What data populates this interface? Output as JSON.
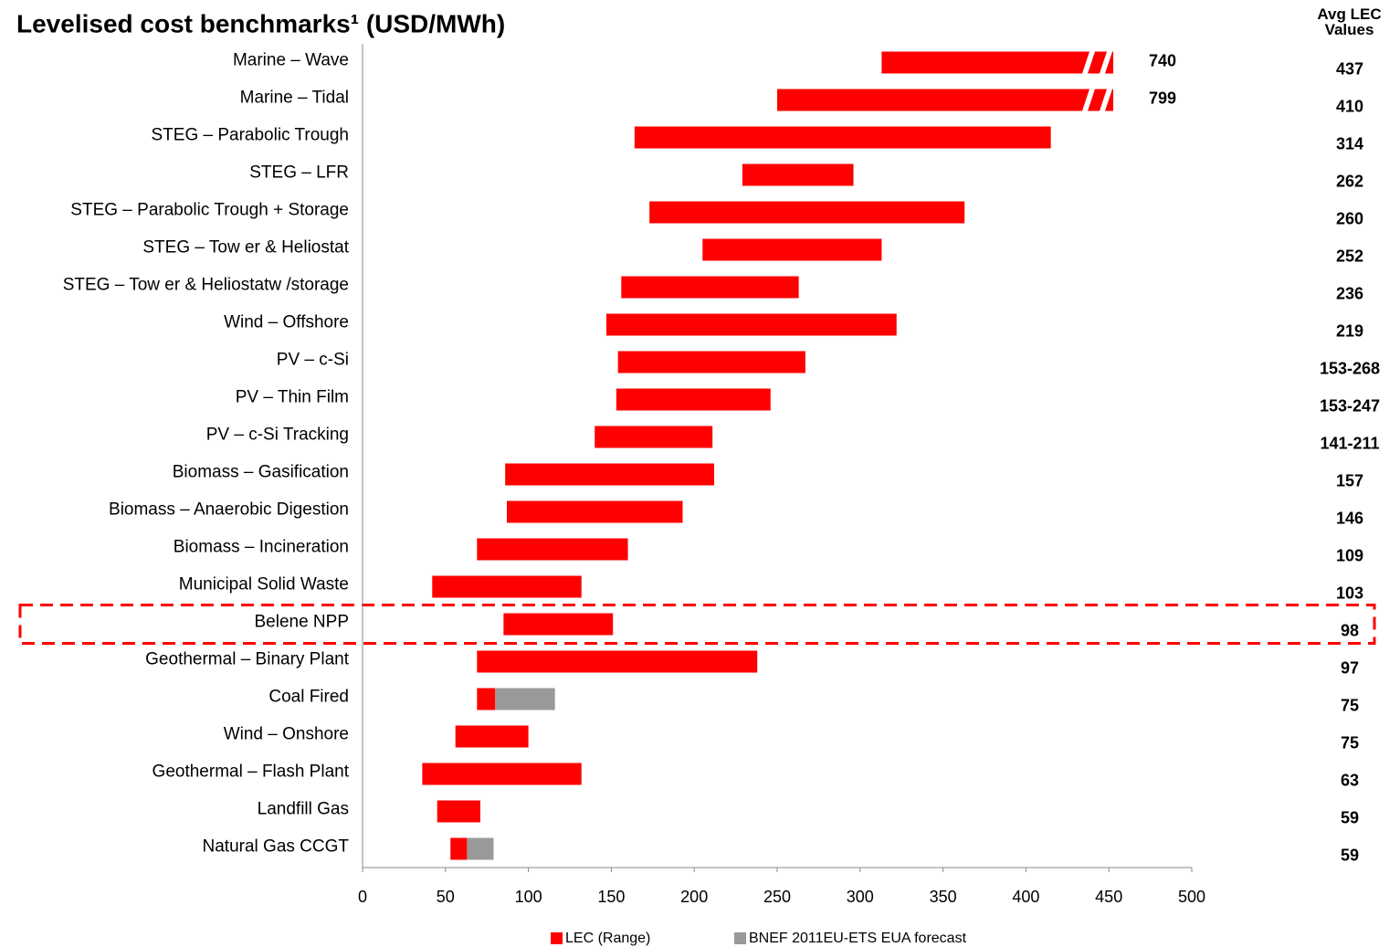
{
  "chart_data": {
    "type": "range_bar",
    "title": "Levelised cost benchmarks¹ (USD/MWh)",
    "categories": [
      "Marine – Wave",
      "Marine – Tidal",
      "STEG – Parabolic Trough",
      "STEG – LFR",
      "STEG – Parabolic Trough + Storage",
      "STEG – Tow er & Heliostat",
      "STEG – Tow er & Heliostatw /storage",
      "Wind – Offshore",
      "PV – c-Si",
      "PV – Thin Film",
      "PV – c-Si Tracking",
      "Biomass – Gasification",
      "Biomass – Anaerobic Digestion",
      "Biomass – Incineration",
      "Municipal Solid Waste",
      "Belene NPP",
      "Geothermal – Binary Plant",
      "Coal Fired",
      "Wind – Onshore",
      "Geothermal – Flash Plant",
      "Landfill Gas",
      "Natural Gas CCGT"
    ],
    "series": [
      {
        "name": "LEC (Range)",
        "color": "#ff0000",
        "values": [
          [
            313,
            740
          ],
          [
            250,
            799
          ],
          [
            164,
            415
          ],
          [
            229,
            296
          ],
          [
            173,
            363
          ],
          [
            205,
            313
          ],
          [
            156,
            263
          ],
          [
            147,
            322
          ],
          [
            154,
            267
          ],
          [
            153,
            246
          ],
          [
            140,
            211
          ],
          [
            86,
            212
          ],
          [
            87,
            193
          ],
          [
            69,
            160
          ],
          [
            42,
            132
          ],
          [
            85,
            151
          ],
          [
            69,
            238
          ],
          [
            69,
            80
          ],
          [
            56,
            100
          ],
          [
            36,
            132
          ],
          [
            45,
            71
          ],
          [
            53,
            63
          ]
        ]
      },
      {
        "name": "BNEF 2011EU-ETS EUA  forecast",
        "color": "#999999",
        "values": [
          null,
          null,
          null,
          null,
          null,
          null,
          null,
          null,
          null,
          null,
          null,
          null,
          null,
          null,
          null,
          null,
          null,
          [
            80,
            116
          ],
          null,
          null,
          null,
          [
            63,
            79
          ]
        ]
      }
    ],
    "xlim": [
      0,
      500
    ],
    "xticks": [
      0,
      50,
      100,
      150,
      200,
      250,
      300,
      350,
      400,
      450,
      500
    ],
    "highlight_category": 15,
    "avg_lec": {
      "title": "Avg LEC Values",
      "values": [
        "437",
        "410",
        "314",
        "262",
        "260",
        "252",
        "236",
        "219",
        "153-268",
        "153-247",
        "141-211",
        "157",
        "146",
        "109",
        "103",
        "98",
        "97",
        "75",
        "75",
        "63",
        "59",
        "59"
      ]
    }
  }
}
